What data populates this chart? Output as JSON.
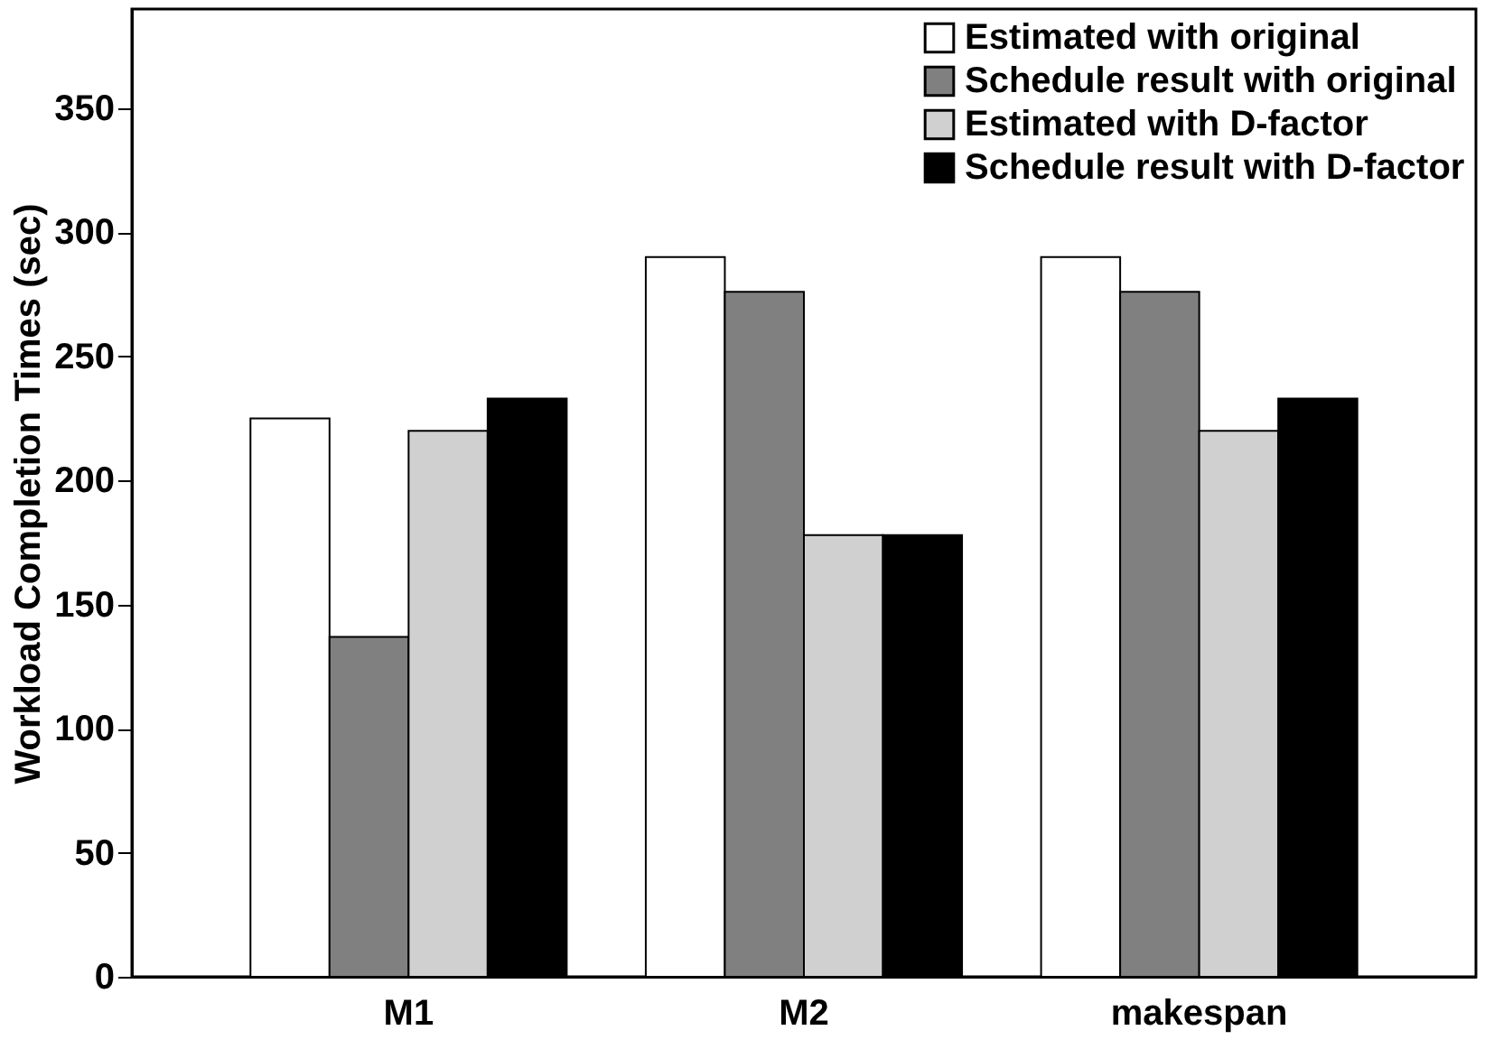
{
  "chart_data": {
    "type": "bar",
    "ylabel": "Workload Completion Times (sec)",
    "categories": [
      "M1",
      "M2",
      "makespan"
    ],
    "series": [
      {
        "name": "Estimated with original",
        "color": "#ffffff",
        "values": [
          225,
          290,
          290
        ]
      },
      {
        "name": "Schedule result with original",
        "color": "#808080",
        "values": [
          137,
          276,
          276
        ]
      },
      {
        "name": "Estimated with D-factor",
        "color": "#d0d0d0",
        "values": [
          220,
          178,
          220
        ]
      },
      {
        "name": "Schedule result with D-factor",
        "color": "#000000",
        "values": [
          233,
          178,
          233
        ]
      }
    ],
    "ylim": [
      0,
      390
    ],
    "yticks": [
      0,
      50,
      100,
      150,
      200,
      250,
      300,
      350
    ],
    "grid": false,
    "legend": "top right"
  }
}
